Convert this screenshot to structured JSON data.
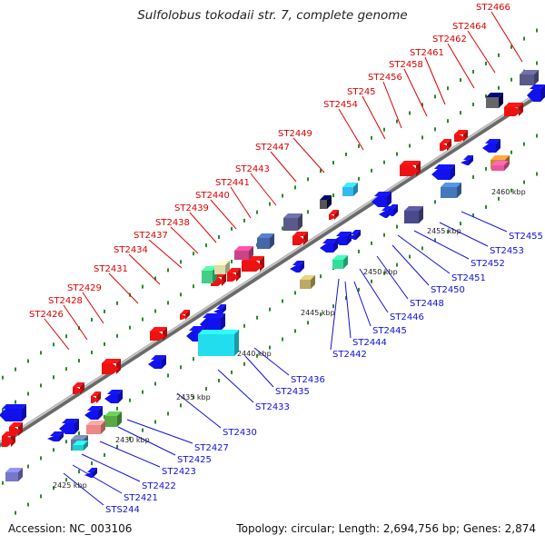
{
  "title": "Sulfolobus tokodaii str. 7, complete genome",
  "accession": "Accession: NC_003106",
  "summary": "Topology: circular; Length: 2,694,756 bp; Genes: 2,874",
  "colors": {
    "upper_label": "#e00000",
    "lower_label": "#1010e0",
    "backbone": "#909090",
    "tick_dot": "#2a8a2a"
  },
  "upper_labels": [
    "ST2466",
    "ST2464",
    "ST2462",
    "ST2461",
    "ST2458",
    "ST2456",
    "ST245",
    "ST2454",
    "ST2449",
    "ST2447",
    "ST2443",
    "ST2441",
    "ST2440",
    "ST2439",
    "ST2438",
    "ST2437",
    "ST2434",
    "ST2431",
    "ST2429",
    "ST2428",
    "ST2426"
  ],
  "lower_labels": [
    "ST2455",
    "ST2453",
    "ST2452",
    "ST2451",
    "ST2450",
    "ST2448",
    "ST2446",
    "ST2445",
    "ST2444",
    "ST2442",
    "ST2436",
    "ST2435",
    "ST2433",
    "ST2430",
    "ST2427",
    "ST2425",
    "ST2423",
    "ST2422",
    "ST2421",
    "STS244"
  ],
  "ticks": [
    "2460 kbp",
    "2455 kbp",
    "2450 kbp",
    "2445 kbp",
    "2440 kbp",
    "2435 kbp",
    "2430 kbp",
    "2425 kbp"
  ]
}
